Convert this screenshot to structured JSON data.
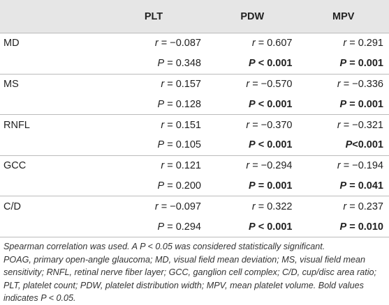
{
  "table": {
    "header": [
      "PLT",
      "PDW",
      "MPV"
    ],
    "groups": [
      {
        "label": "MD",
        "rows": [
          [
            {
              "symbol": "r",
              "value": " = −0.087",
              "bold": false
            },
            {
              "symbol": "r",
              "value": " = 0.607",
              "bold": false
            },
            {
              "symbol": "r",
              "value": " = 0.291",
              "bold": false
            }
          ],
          [
            {
              "symbol": "P",
              "value": " = 0.348",
              "bold": false
            },
            {
              "symbol": "P",
              "value": " < 0.001",
              "bold": true
            },
            {
              "symbol": "P",
              "value": " = 0.001",
              "bold": true
            }
          ]
        ]
      },
      {
        "label": "MS",
        "rows": [
          [
            {
              "symbol": "r",
              "value": " = 0.157",
              "bold": false
            },
            {
              "symbol": "r",
              "value": " = −0.570",
              "bold": false
            },
            {
              "symbol": "r",
              "value": " = −0.336",
              "bold": false
            }
          ],
          [
            {
              "symbol": "P",
              "value": " = 0.128",
              "bold": false
            },
            {
              "symbol": "P",
              "value": " < 0.001",
              "bold": true
            },
            {
              "symbol": "P",
              "value": " = 0.001",
              "bold": true
            }
          ]
        ]
      },
      {
        "label": "RNFL",
        "rows": [
          [
            {
              "symbol": "r",
              "value": " = 0.151",
              "bold": false
            },
            {
              "symbol": "r",
              "value": " = −0.370",
              "bold": false
            },
            {
              "symbol": "r",
              "value": " = −0.321",
              "bold": false
            }
          ],
          [
            {
              "symbol": "P",
              "value": " = 0.105",
              "bold": false
            },
            {
              "symbol": "P",
              "value": " < 0.001",
              "bold": true
            },
            {
              "symbol": "P",
              "value": "<0.001",
              "bold": true
            }
          ]
        ]
      },
      {
        "label": "GCC",
        "rows": [
          [
            {
              "symbol": "r",
              "value": " = 0.121",
              "bold": false
            },
            {
              "symbol": "r",
              "value": " = −0.294",
              "bold": false
            },
            {
              "symbol": "r",
              "value": " = −0.194",
              "bold": false
            }
          ],
          [
            {
              "symbol": "P",
              "value": " = 0.200",
              "bold": false
            },
            {
              "symbol": "P",
              "value": " = 0.001",
              "bold": true
            },
            {
              "symbol": "P",
              "value": " = 0.041",
              "bold": true
            }
          ]
        ]
      },
      {
        "label": "C/D",
        "rows": [
          [
            {
              "symbol": "r",
              "value": " = −0.097",
              "bold": false
            },
            {
              "symbol": "r",
              "value": " = 0.322",
              "bold": false
            },
            {
              "symbol": "r",
              "value": " = 0.237",
              "bold": false
            }
          ],
          [
            {
              "symbol": "P",
              "value": " = 0.294",
              "bold": false
            },
            {
              "symbol": "P",
              "value": " < 0.001",
              "bold": true
            },
            {
              "symbol": "P",
              "value": " = 0.010",
              "bold": true
            }
          ]
        ]
      }
    ]
  },
  "footnotes": [
    "Spearman correlation was used. A P < 0.05 was considered statistically significant.",
    "POAG, primary open-angle glaucoma; MD, visual field mean deviation; MS, visual field mean sensitivity; RNFL, retinal nerve fiber layer; GCC, ganglion cell complex; C/D, cup/disc area ratio; PLT, platelet count; PDW, platelet distribution width; MPV, mean platelet volume. Bold values indicates P < 0.05."
  ]
}
